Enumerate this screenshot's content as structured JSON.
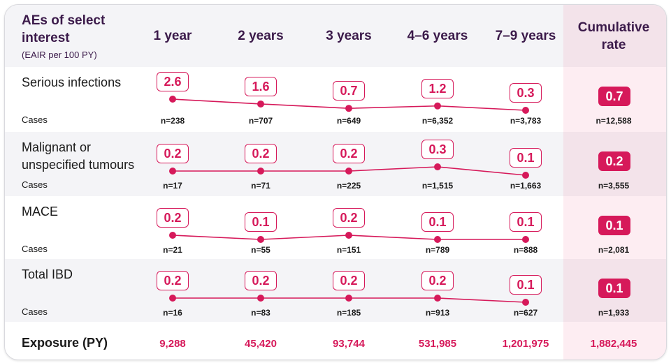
{
  "header": {
    "title": "AEs of select interest",
    "subtitle": "(EAIR per 100 PY)",
    "columns": [
      "1 year",
      "2 years",
      "3 years",
      "4–6 years",
      "7–9 years"
    ],
    "cumulative": "Cumulative rate"
  },
  "cases_label": "Cases",
  "colors": {
    "accent": "#d6195a",
    "heading": "#3b1a4a"
  },
  "chart_data": {
    "type": "line",
    "categories": [
      "1 year",
      "2 years",
      "3 years",
      "4–6 years",
      "7–9 years"
    ],
    "series": [
      {
        "name": "Serious infections",
        "values": [
          2.6,
          1.6,
          0.7,
          1.2,
          0.3
        ],
        "cases": [
          "n=238",
          "n=707",
          "n=649",
          "n=6,352",
          "n=3,783"
        ],
        "cumulative": 0.7,
        "cumulative_cases": "n=12,588"
      },
      {
        "name": "Malignant or unspecified tumours",
        "values": [
          0.2,
          0.2,
          0.2,
          0.3,
          0.1
        ],
        "cases": [
          "n=17",
          "n=71",
          "n=225",
          "n=1,515",
          "n=1,663"
        ],
        "cumulative": 0.2,
        "cumulative_cases": "n=3,555"
      },
      {
        "name": "MACE",
        "values": [
          0.2,
          0.1,
          0.2,
          0.1,
          0.1
        ],
        "cases": [
          "n=21",
          "n=55",
          "n=151",
          "n=789",
          "n=888"
        ],
        "cumulative": 0.1,
        "cumulative_cases": "n=2,081"
      },
      {
        "name": "Total IBD",
        "values": [
          0.2,
          0.2,
          0.2,
          0.2,
          0.1
        ],
        "cases": [
          "n=16",
          "n=83",
          "n=185",
          "n=913",
          "n=627"
        ],
        "cumulative": 0.1,
        "cumulative_cases": "n=1,933"
      }
    ]
  },
  "exposure": {
    "label": "Exposure (PY)",
    "values": [
      "9,288",
      "45,420",
      "93,744",
      "531,985",
      "1,201,975"
    ],
    "cumulative": "1,882,445"
  }
}
